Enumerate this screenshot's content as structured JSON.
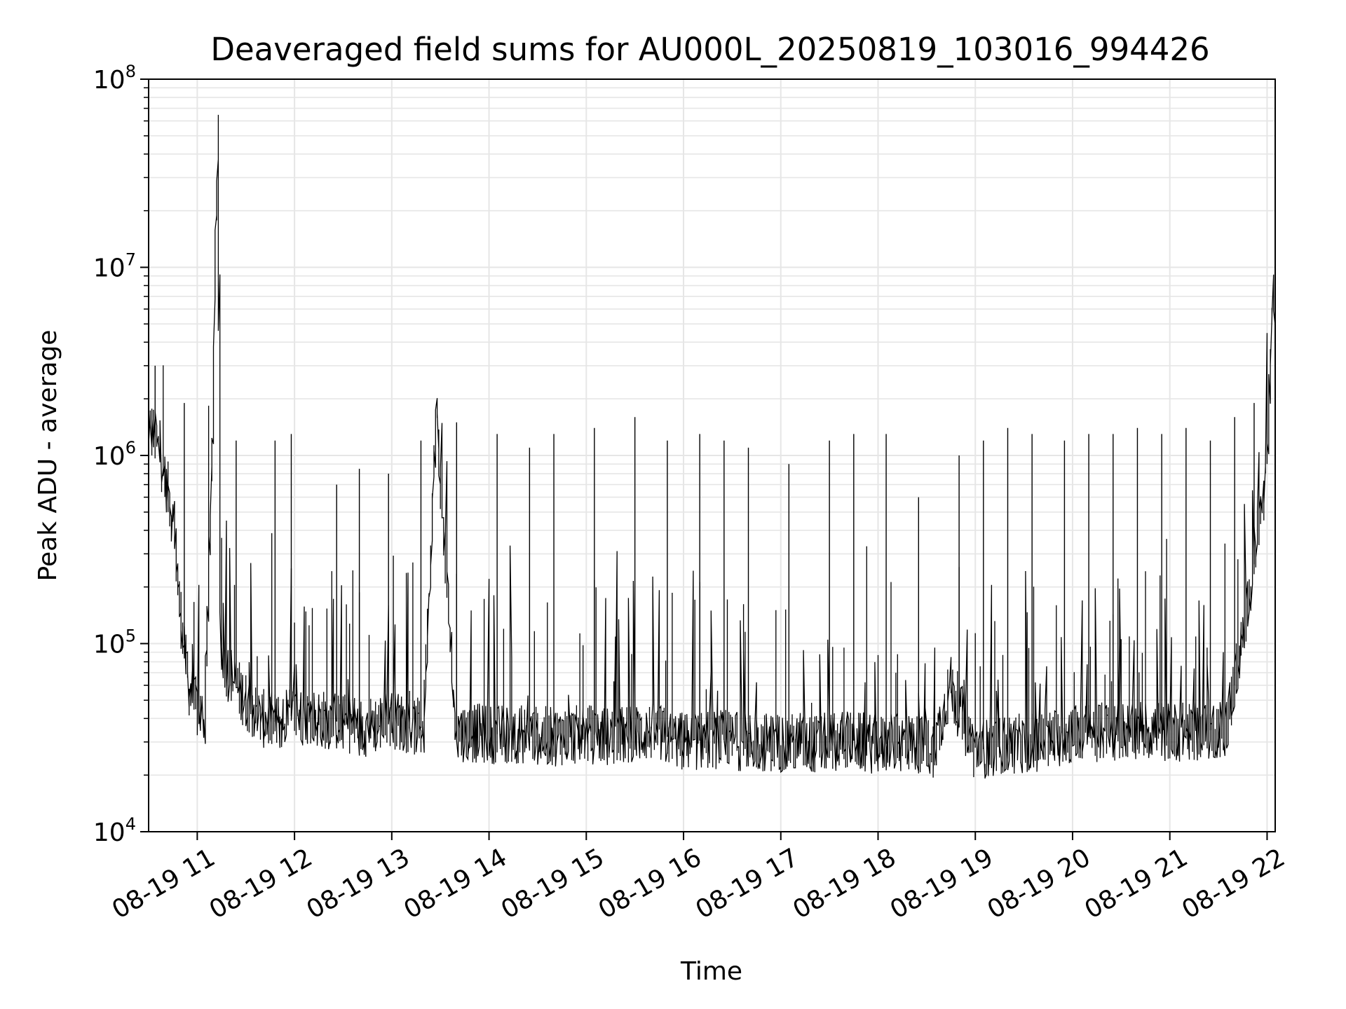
{
  "chart_data": {
    "type": "line",
    "title": "Deaveraged field sums for AU000L_20250819_103016_994426",
    "xlabel": "Time",
    "ylabel": "Peak ADU - average",
    "yscale": "log",
    "ylim": [
      10000,
      100000000
    ],
    "xlim": [
      "2025-08-19T10:30",
      "2025-08-19T22:05"
    ],
    "grid": true,
    "line_color": "#000000",
    "x_ticks": [
      "08-19 11",
      "08-19 12",
      "08-19 13",
      "08-19 14",
      "08-19 15",
      "08-19 16",
      "08-19 17",
      "08-19 18",
      "08-19 19",
      "08-19 20",
      "08-19 21",
      "08-19 22"
    ],
    "y_ticks": [
      {
        "base": "10",
        "exp": "4"
      },
      {
        "base": "10",
        "exp": "5"
      },
      {
        "base": "10",
        "exp": "6"
      },
      {
        "base": "10",
        "exp": "7"
      },
      {
        "base": "10",
        "exp": "8"
      }
    ],
    "series": [
      {
        "x": [
          "2025-08-19T10:30",
          "2025-08-19T10:35",
          "2025-08-19T10:40",
          "2025-08-19T10:45",
          "2025-08-19T10:50",
          "2025-08-19T10:55",
          "2025-08-19T11:00",
          "2025-08-19T11:05",
          "2025-08-19T11:10",
          "2025-08-19T11:13",
          "2025-08-19T11:15",
          "2025-08-19T11:20",
          "2025-08-19T11:30",
          "2025-08-19T11:40",
          "2025-08-19T11:50",
          "2025-08-19T12:00",
          "2025-08-19T12:15",
          "2025-08-19T12:30",
          "2025-08-19T12:45",
          "2025-08-19T13:00",
          "2025-08-19T13:20",
          "2025-08-19T13:28",
          "2025-08-19T13:40",
          "2025-08-19T14:00",
          "2025-08-19T14:20",
          "2025-08-19T14:40",
          "2025-08-19T15:00",
          "2025-08-19T15:20",
          "2025-08-19T15:40",
          "2025-08-19T16:00",
          "2025-08-19T16:20",
          "2025-08-19T16:40",
          "2025-08-19T17:00",
          "2025-08-19T17:20",
          "2025-08-19T17:40",
          "2025-08-19T18:00",
          "2025-08-19T18:20",
          "2025-08-19T18:35",
          "2025-08-19T18:45",
          "2025-08-19T19:00",
          "2025-08-19T19:20",
          "2025-08-19T19:40",
          "2025-08-19T20:00",
          "2025-08-19T20:20",
          "2025-08-19T20:40",
          "2025-08-19T21:00",
          "2025-08-19T21:20",
          "2025-08-19T21:35",
          "2025-08-19T21:45",
          "2025-08-19T21:55",
          "2025-08-19T22:00",
          "2025-08-19T22:04"
        ],
        "y": [
          1500000,
          1200000,
          800000,
          500000,
          150000,
          60000,
          45000,
          40000,
          1200000,
          42000000,
          90000,
          70000,
          50000,
          40000,
          38000,
          42000,
          40000,
          38000,
          36000,
          40000,
          35000,
          1800000,
          34000,
          33000,
          33000,
          32000,
          33000,
          32000,
          34000,
          30000,
          31000,
          30000,
          30000,
          29000,
          31000,
          29000,
          30000,
          28000,
          60000,
          27000,
          29000,
          30000,
          33000,
          34000,
          35000,
          34000,
          34000,
          36000,
          100000,
          400000,
          700000,
          6500000
        ],
        "spikes": [
          {
            "x": "2025-08-19T10:34",
            "y": 3000000
          },
          {
            "x": "2025-08-19T10:52",
            "y": 1900000
          },
          {
            "x": "2025-08-19T11:24",
            "y": 1200000
          },
          {
            "x": "2025-08-19T11:48",
            "y": 1200000
          },
          {
            "x": "2025-08-19T11:58",
            "y": 1300000
          },
          {
            "x": "2025-08-19T12:26",
            "y": 700000
          },
          {
            "x": "2025-08-19T12:40",
            "y": 850000
          },
          {
            "x": "2025-08-19T12:58",
            "y": 800000
          },
          {
            "x": "2025-08-19T13:18",
            "y": 1200000
          },
          {
            "x": "2025-08-19T13:40",
            "y": 1500000
          },
          {
            "x": "2025-08-19T14:05",
            "y": 1300000
          },
          {
            "x": "2025-08-19T14:25",
            "y": 1100000
          },
          {
            "x": "2025-08-19T14:40",
            "y": 1300000
          },
          {
            "x": "2025-08-19T15:05",
            "y": 1400000
          },
          {
            "x": "2025-08-19T15:30",
            "y": 1600000
          },
          {
            "x": "2025-08-19T15:50",
            "y": 1200000
          },
          {
            "x": "2025-08-19T16:10",
            "y": 1300000
          },
          {
            "x": "2025-08-19T16:25",
            "y": 1200000
          },
          {
            "x": "2025-08-19T16:40",
            "y": 1100000
          },
          {
            "x": "2025-08-19T17:05",
            "y": 900000
          },
          {
            "x": "2025-08-19T17:30",
            "y": 1200000
          },
          {
            "x": "2025-08-19T17:45",
            "y": 1300000
          },
          {
            "x": "2025-08-19T18:05",
            "y": 1300000
          },
          {
            "x": "2025-08-19T18:25",
            "y": 600000
          },
          {
            "x": "2025-08-19T18:50",
            "y": 1000000
          },
          {
            "x": "2025-08-19T19:05",
            "y": 1200000
          },
          {
            "x": "2025-08-19T19:20",
            "y": 1400000
          },
          {
            "x": "2025-08-19T19:35",
            "y": 1300000
          },
          {
            "x": "2025-08-19T19:55",
            "y": 1200000
          },
          {
            "x": "2025-08-19T20:10",
            "y": 1300000
          },
          {
            "x": "2025-08-19T20:25",
            "y": 1300000
          },
          {
            "x": "2025-08-19T20:40",
            "y": 1400000
          },
          {
            "x": "2025-08-19T20:55",
            "y": 1300000
          },
          {
            "x": "2025-08-19T21:10",
            "y": 1400000
          },
          {
            "x": "2025-08-19T21:25",
            "y": 1200000
          },
          {
            "x": "2025-08-19T21:40",
            "y": 1600000
          },
          {
            "x": "2025-08-19T21:52",
            "y": 1900000
          }
        ]
      }
    ]
  }
}
